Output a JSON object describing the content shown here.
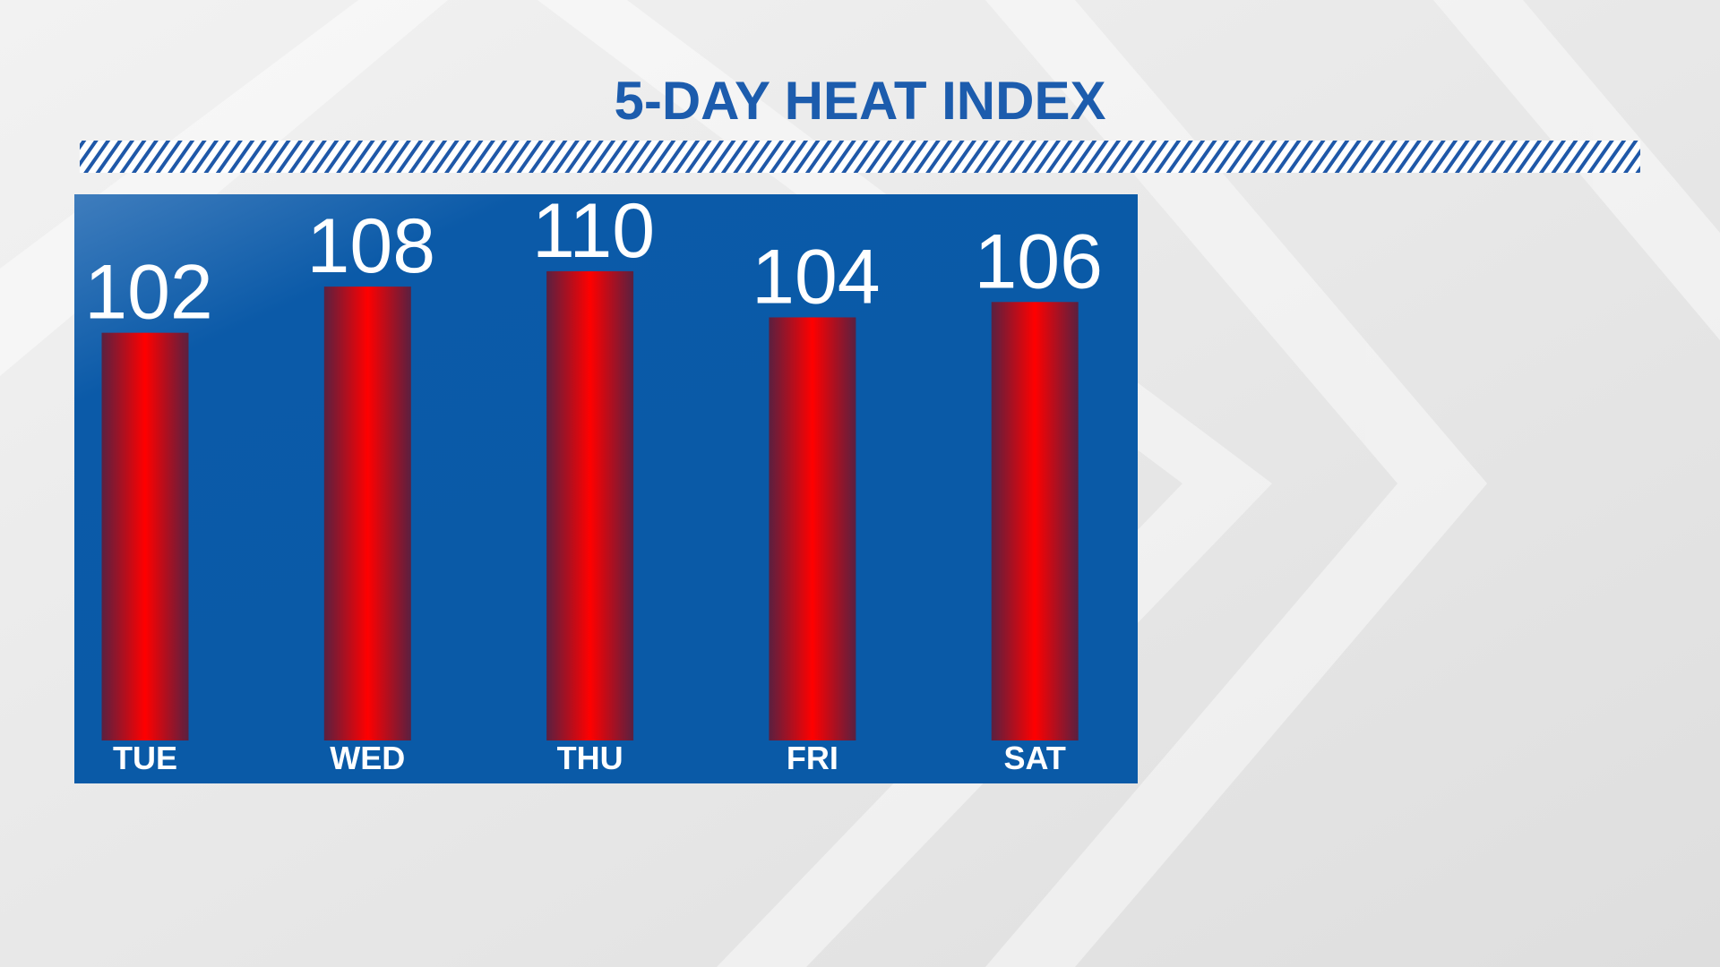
{
  "chart_data": {
    "type": "bar",
    "title": "5-DAY HEAT INDEX",
    "categories": [
      "TUE",
      "WED",
      "THU",
      "FRI",
      "SAT"
    ],
    "values": [
      102,
      108,
      110,
      104,
      106
    ],
    "color": "#ee0000",
    "ylim": [
      49,
      120
    ]
  }
}
